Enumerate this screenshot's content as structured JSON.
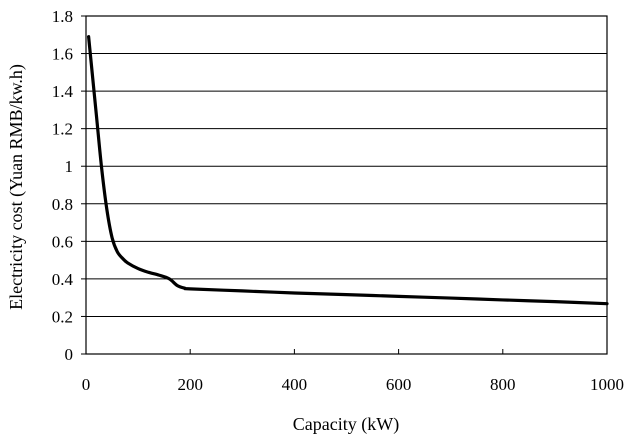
{
  "chart_data": {
    "type": "line",
    "title": "",
    "xlabel": "Capacity (kW)",
    "ylabel": "Electricity cost (Yuan RMB/kw.h)",
    "xlim": [
      0,
      1000
    ],
    "ylim": [
      0,
      1.8
    ],
    "x_ticks": [
      0,
      200,
      400,
      600,
      800,
      1000
    ],
    "x_tick_labels": [
      "0",
      "200",
      "400",
      "600",
      "800",
      "1000"
    ],
    "y_ticks": [
      0,
      0.2,
      0.4,
      0.6,
      0.8,
      1,
      1.2,
      1.4,
      1.6,
      1.8
    ],
    "y_tick_labels": [
      "0",
      "0.2",
      "0.4",
      "0.6",
      "0.8",
      "1",
      "1.2",
      "1.4",
      "1.6",
      "1.8"
    ],
    "grid": true,
    "legend": "none",
    "series": [
      {
        "color": "#000000",
        "x": [
          5,
          10,
          20,
          30,
          40,
          50,
          60,
          70,
          80,
          100,
          120,
          140,
          160,
          175,
          190,
          200,
          300,
          400,
          500,
          600,
          700,
          800,
          900,
          1000
        ],
        "y": [
          1.69,
          1.55,
          1.27,
          0.99,
          0.77,
          0.62,
          0.545,
          0.51,
          0.485,
          0.455,
          0.435,
          0.42,
          0.4,
          0.365,
          0.35,
          0.347,
          0.336,
          0.325,
          0.316,
          0.307,
          0.298,
          0.288,
          0.279,
          0.268
        ]
      }
    ]
  }
}
